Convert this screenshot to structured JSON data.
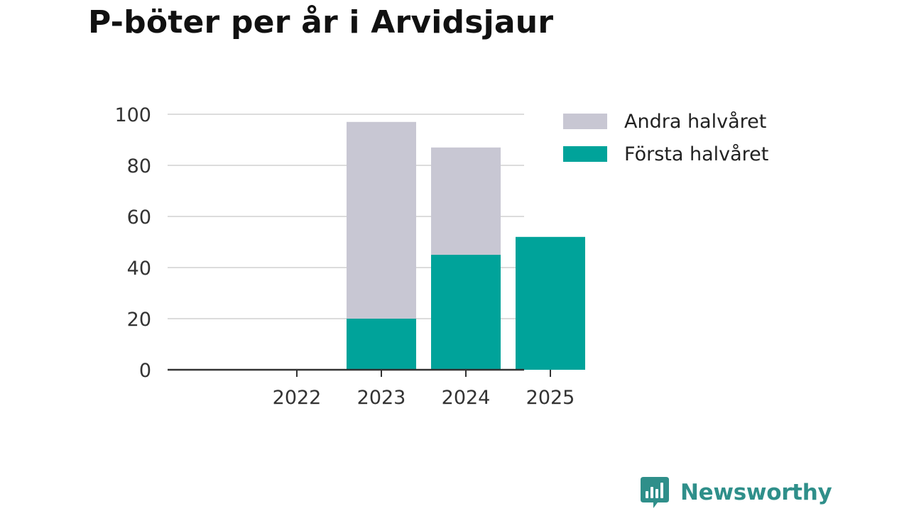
{
  "title": "P-böter per år i Arvidsjaur",
  "brand": {
    "name": "Newsworthy",
    "icon": "newsworthy-logo-icon",
    "color": "#2f8f8a"
  },
  "chart_data": {
    "type": "bar",
    "stacked": true,
    "title": "P-böter per år i Arvidsjaur",
    "xlabel": "",
    "ylabel": "",
    "categories": [
      "2022",
      "2023",
      "2024",
      "2025"
    ],
    "series": [
      {
        "name": "Första halvåret",
        "values": [
          0,
          20,
          45,
          52
        ],
        "color": "#00a39a"
      },
      {
        "name": "Andra halvåret",
        "values": [
          0,
          77,
          42,
          0
        ],
        "color": "#c8c7d3"
      }
    ],
    "ylim": [
      0,
      100
    ],
    "yticks": [
      "0",
      "20",
      "40",
      "60",
      "80",
      "100"
    ],
    "grid": true,
    "legend": {
      "placement": "right",
      "order": [
        "Andra halvåret",
        "Första halvåret"
      ]
    }
  }
}
